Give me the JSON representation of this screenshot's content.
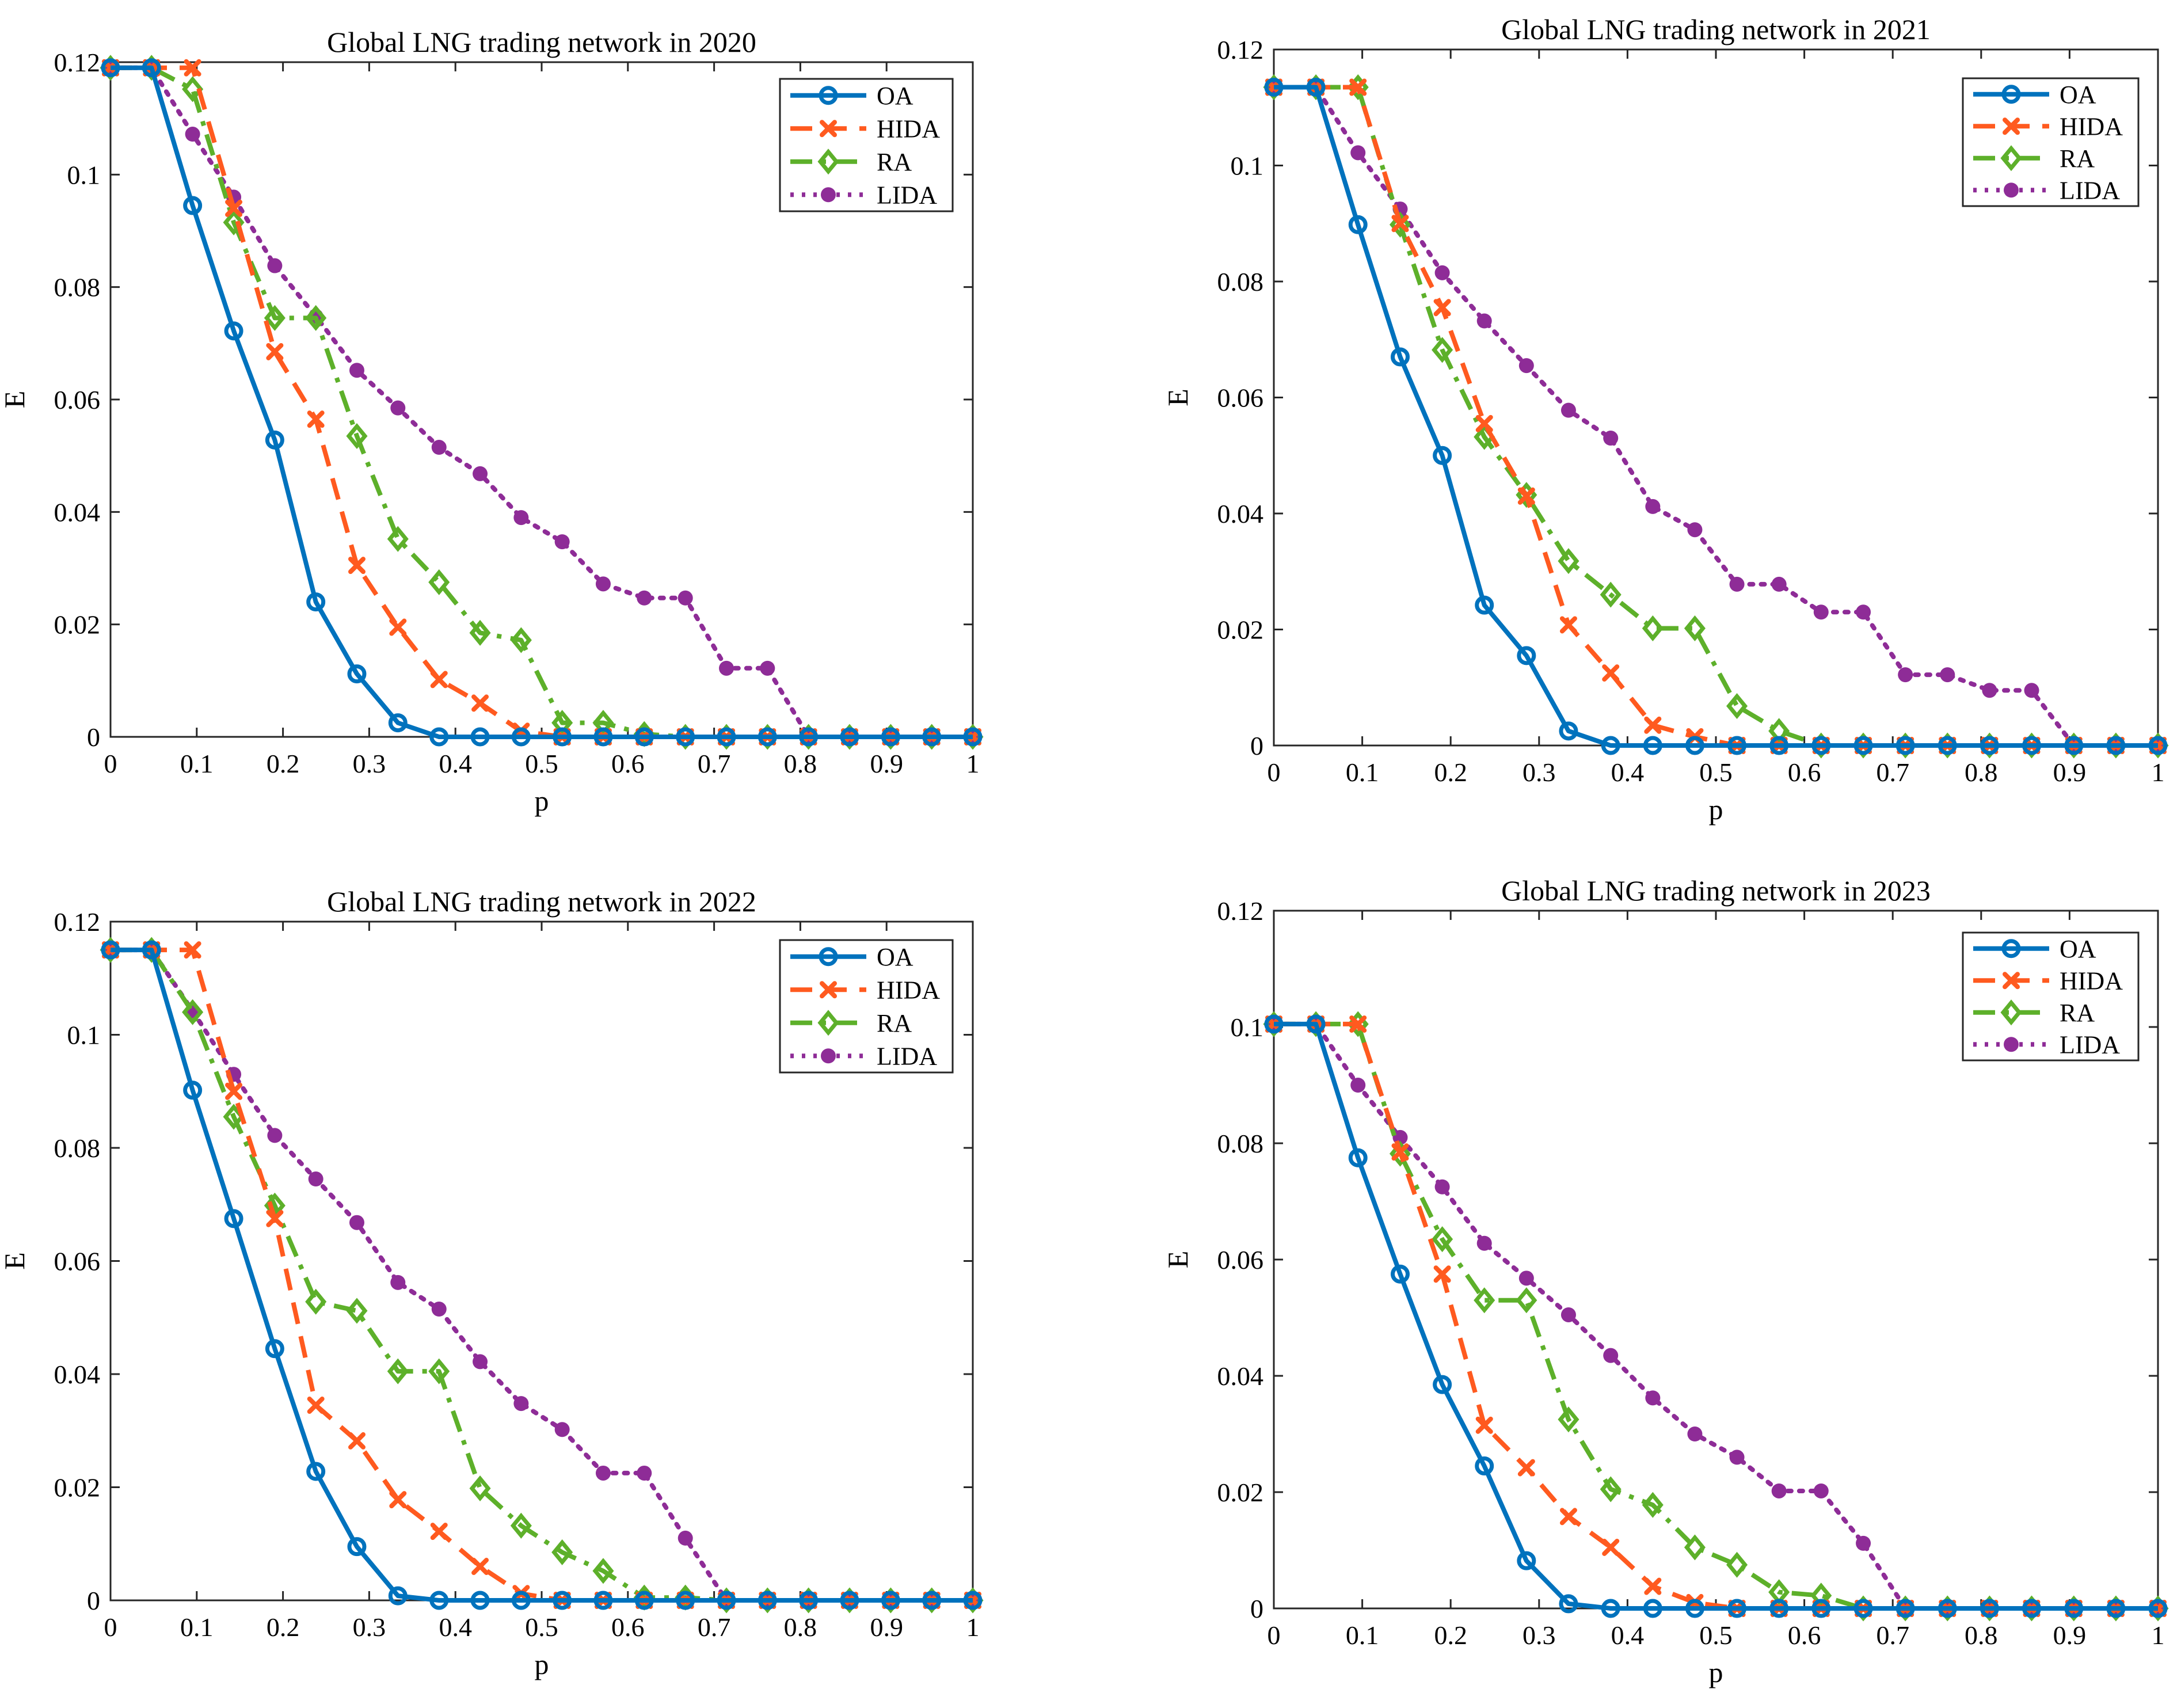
{
  "colors": {
    "OA": "#0072BD",
    "HIDA": "#FF5A1F",
    "RA": "#5DB02A",
    "LIDA": "#8E2C97",
    "axis": "#262626",
    "background": "#ffffff"
  },
  "chart_data": [
    {
      "type": "line",
      "title": "Global LNG trading network in 2020",
      "xlabel": "p",
      "ylabel": "E",
      "xlim": [
        0,
        1
      ],
      "ylim": [
        0,
        0.12
      ],
      "xticks": [
        "0",
        "0.1",
        "0.2",
        "0.3",
        "0.4",
        "0.5",
        "0.6",
        "0.7",
        "0.8",
        "0.9",
        "1"
      ],
      "yticks": [
        "0",
        "0.02",
        "0.04",
        "0.06",
        "0.08",
        "0.1",
        "0.12"
      ],
      "legend_position": "top-right",
      "grid": false,
      "x": [
        0,
        0.0476,
        0.0952,
        0.1429,
        0.1905,
        0.2381,
        0.2857,
        0.3333,
        0.381,
        0.4286,
        0.4762,
        0.5238,
        0.5714,
        0.619,
        0.6667,
        0.7143,
        0.7619,
        0.8095,
        0.8571,
        0.9048,
        0.9524,
        1
      ],
      "series": [
        {
          "name": "OA",
          "values": [
            0.119,
            0.119,
            0.0945,
            0.0722,
            0.0528,
            0.024,
            0.0112,
            0.0025,
            0,
            0,
            0,
            0,
            0,
            0,
            0,
            0,
            0,
            0,
            0,
            0,
            0,
            0
          ]
        },
        {
          "name": "HIDA",
          "values": [
            0.119,
            0.119,
            0.119,
            0.094,
            0.0685,
            0.0565,
            0.0305,
            0.0195,
            0.0102,
            0.006,
            0.001,
            0,
            0,
            0,
            0,
            0,
            0,
            0,
            0,
            0,
            0,
            0
          ]
        },
        {
          "name": "RA",
          "values": [
            0.119,
            0.119,
            0.1152,
            0.0915,
            0.0745,
            0.0745,
            0.0535,
            0.0352,
            0.0275,
            0.0185,
            0.0172,
            0.0025,
            0.0025,
            0.0005,
            0,
            0,
            0,
            0,
            0,
            0,
            0,
            0
          ]
        },
        {
          "name": "LIDA",
          "values": [
            0.119,
            0.119,
            0.1072,
            0.096,
            0.0838,
            0.0748,
            0.0652,
            0.0585,
            0.0515,
            0.0468,
            0.039,
            0.0347,
            0.0272,
            0.0247,
            0.0247,
            0.0122,
            0.0122,
            0,
            0,
            0,
            0,
            0
          ]
        }
      ]
    },
    {
      "type": "line",
      "title": "Global LNG trading network in 2021",
      "xlabel": "p",
      "ylabel": "E",
      "xlim": [
        0,
        1
      ],
      "ylim": [
        0,
        0.12
      ],
      "xticks": [
        "0",
        "0.1",
        "0.2",
        "0.3",
        "0.4",
        "0.5",
        "0.6",
        "0.7",
        "0.8",
        "0.9",
        "1"
      ],
      "yticks": [
        "0",
        "0.02",
        "0.04",
        "0.06",
        "0.08",
        "0.1",
        "0.12"
      ],
      "legend_position": "top-right",
      "grid": false,
      "x": [
        0,
        0.0476,
        0.0952,
        0.1429,
        0.1905,
        0.2381,
        0.2857,
        0.3333,
        0.381,
        0.4286,
        0.4762,
        0.5238,
        0.5714,
        0.619,
        0.6667,
        0.7143,
        0.7619,
        0.8095,
        0.8571,
        0.9048,
        0.9524,
        1
      ],
      "series": [
        {
          "name": "OA",
          "values": [
            0.1135,
            0.1135,
            0.0898,
            0.067,
            0.05,
            0.0242,
            0.0155,
            0.0025,
            0,
            0,
            0,
            0,
            0,
            0,
            0,
            0,
            0,
            0,
            0,
            0,
            0,
            0
          ]
        },
        {
          "name": "HIDA",
          "values": [
            0.1135,
            0.1135,
            0.1135,
            0.09,
            0.0755,
            0.0555,
            0.043,
            0.0208,
            0.0125,
            0.0035,
            0.0015,
            0,
            0,
            0,
            0,
            0,
            0,
            0,
            0,
            0,
            0,
            0
          ]
        },
        {
          "name": "RA",
          "values": [
            0.1135,
            0.1135,
            0.1135,
            0.0898,
            0.0682,
            0.0532,
            0.0432,
            0.0318,
            0.026,
            0.0202,
            0.0202,
            0.0068,
            0.0025,
            0,
            0,
            0,
            0,
            0,
            0,
            0,
            0,
            0
          ]
        },
        {
          "name": "LIDA",
          "values": [
            0.1135,
            0.1135,
            0.1022,
            0.0925,
            0.0815,
            0.0732,
            0.0655,
            0.0578,
            0.053,
            0.0412,
            0.0372,
            0.0278,
            0.0278,
            0.023,
            0.023,
            0.0122,
            0.0122,
            0.0095,
            0.0095,
            0,
            0,
            0
          ]
        }
      ]
    },
    {
      "type": "line",
      "title": "Global LNG trading network in 2022",
      "xlabel": "p",
      "ylabel": "E",
      "xlim": [
        0,
        1
      ],
      "ylim": [
        0,
        0.12
      ],
      "xticks": [
        "0",
        "0.1",
        "0.2",
        "0.3",
        "0.4",
        "0.5",
        "0.6",
        "0.7",
        "0.8",
        "0.9",
        "1"
      ],
      "yticks": [
        "0",
        "0.02",
        "0.04",
        "0.06",
        "0.08",
        "0.1",
        "0.12"
      ],
      "legend_position": "top-right",
      "grid": false,
      "x": [
        0,
        0.0476,
        0.0952,
        0.1429,
        0.1905,
        0.2381,
        0.2857,
        0.3333,
        0.381,
        0.4286,
        0.4762,
        0.5238,
        0.5714,
        0.619,
        0.6667,
        0.7143,
        0.7619,
        0.8095,
        0.8571,
        0.9048,
        0.9524,
        1
      ],
      "series": [
        {
          "name": "OA",
          "values": [
            0.115,
            0.115,
            0.0902,
            0.0675,
            0.0445,
            0.0228,
            0.0095,
            0.0008,
            0,
            0,
            0,
            0,
            0,
            0,
            0,
            0,
            0,
            0,
            0,
            0,
            0,
            0
          ]
        },
        {
          "name": "HIDA",
          "values": [
            0.115,
            0.115,
            0.115,
            0.09,
            0.0675,
            0.0345,
            0.0282,
            0.0178,
            0.0122,
            0.006,
            0.0012,
            0,
            0,
            0,
            0,
            0,
            0,
            0,
            0,
            0,
            0,
            0
          ]
        },
        {
          "name": "RA",
          "values": [
            0.115,
            0.115,
            0.104,
            0.0855,
            0.0698,
            0.0528,
            0.0512,
            0.0405,
            0.0405,
            0.0198,
            0.0132,
            0.0085,
            0.0052,
            0.0005,
            0.0005,
            0,
            0,
            0,
            0,
            0,
            0,
            0
          ]
        },
        {
          "name": "LIDA",
          "values": [
            0.115,
            0.115,
            0.1042,
            0.093,
            0.0822,
            0.0745,
            0.0668,
            0.0562,
            0.0515,
            0.0422,
            0.0348,
            0.0302,
            0.0225,
            0.0225,
            0.011,
            0,
            0,
            0,
            0,
            0,
            0,
            0
          ]
        }
      ]
    },
    {
      "type": "line",
      "title": "Global LNG trading network in 2023",
      "xlabel": "p",
      "ylabel": "E",
      "xlim": [
        0,
        1
      ],
      "ylim": [
        0,
        0.12
      ],
      "xticks": [
        "0",
        "0.1",
        "0.2",
        "0.3",
        "0.4",
        "0.5",
        "0.6",
        "0.7",
        "0.8",
        "0.9",
        "1"
      ],
      "yticks": [
        "0",
        "0.02",
        "0.04",
        "0.06",
        "0.08",
        "0.1",
        "0.12"
      ],
      "legend_position": "top-right",
      "grid": false,
      "x": [
        0,
        0.0476,
        0.0952,
        0.1429,
        0.1905,
        0.2381,
        0.2857,
        0.3333,
        0.381,
        0.4286,
        0.4762,
        0.5238,
        0.5714,
        0.619,
        0.6667,
        0.7143,
        0.7619,
        0.8095,
        0.8571,
        0.9048,
        0.9524,
        1
      ],
      "series": [
        {
          "name": "OA",
          "values": [
            0.1005,
            0.1005,
            0.0775,
            0.0575,
            0.0385,
            0.0245,
            0.0082,
            0.0008,
            0,
            0,
            0,
            0,
            0,
            0,
            0,
            0,
            0,
            0,
            0,
            0,
            0,
            0
          ]
        },
        {
          "name": "HIDA",
          "values": [
            0.1005,
            0.1005,
            0.1005,
            0.0785,
            0.0575,
            0.0315,
            0.0242,
            0.0158,
            0.0105,
            0.0038,
            0.001,
            0,
            0,
            0,
            0,
            0,
            0,
            0,
            0,
            0,
            0,
            0
          ]
        },
        {
          "name": "RA",
          "values": [
            0.1005,
            0.1005,
            0.1005,
            0.0782,
            0.0635,
            0.053,
            0.053,
            0.0325,
            0.0205,
            0.0178,
            0.0105,
            0.0075,
            0.0028,
            0.0022,
            0,
            0,
            0,
            0,
            0,
            0,
            0,
            0
          ]
        },
        {
          "name": "LIDA",
          "values": [
            0.1005,
            0.1005,
            0.09,
            0.081,
            0.0725,
            0.0628,
            0.0568,
            0.0505,
            0.0435,
            0.0362,
            0.03,
            0.026,
            0.0202,
            0.0202,
            0.0112,
            0,
            0,
            0,
            0,
            0,
            0,
            0
          ]
        }
      ]
    }
  ]
}
